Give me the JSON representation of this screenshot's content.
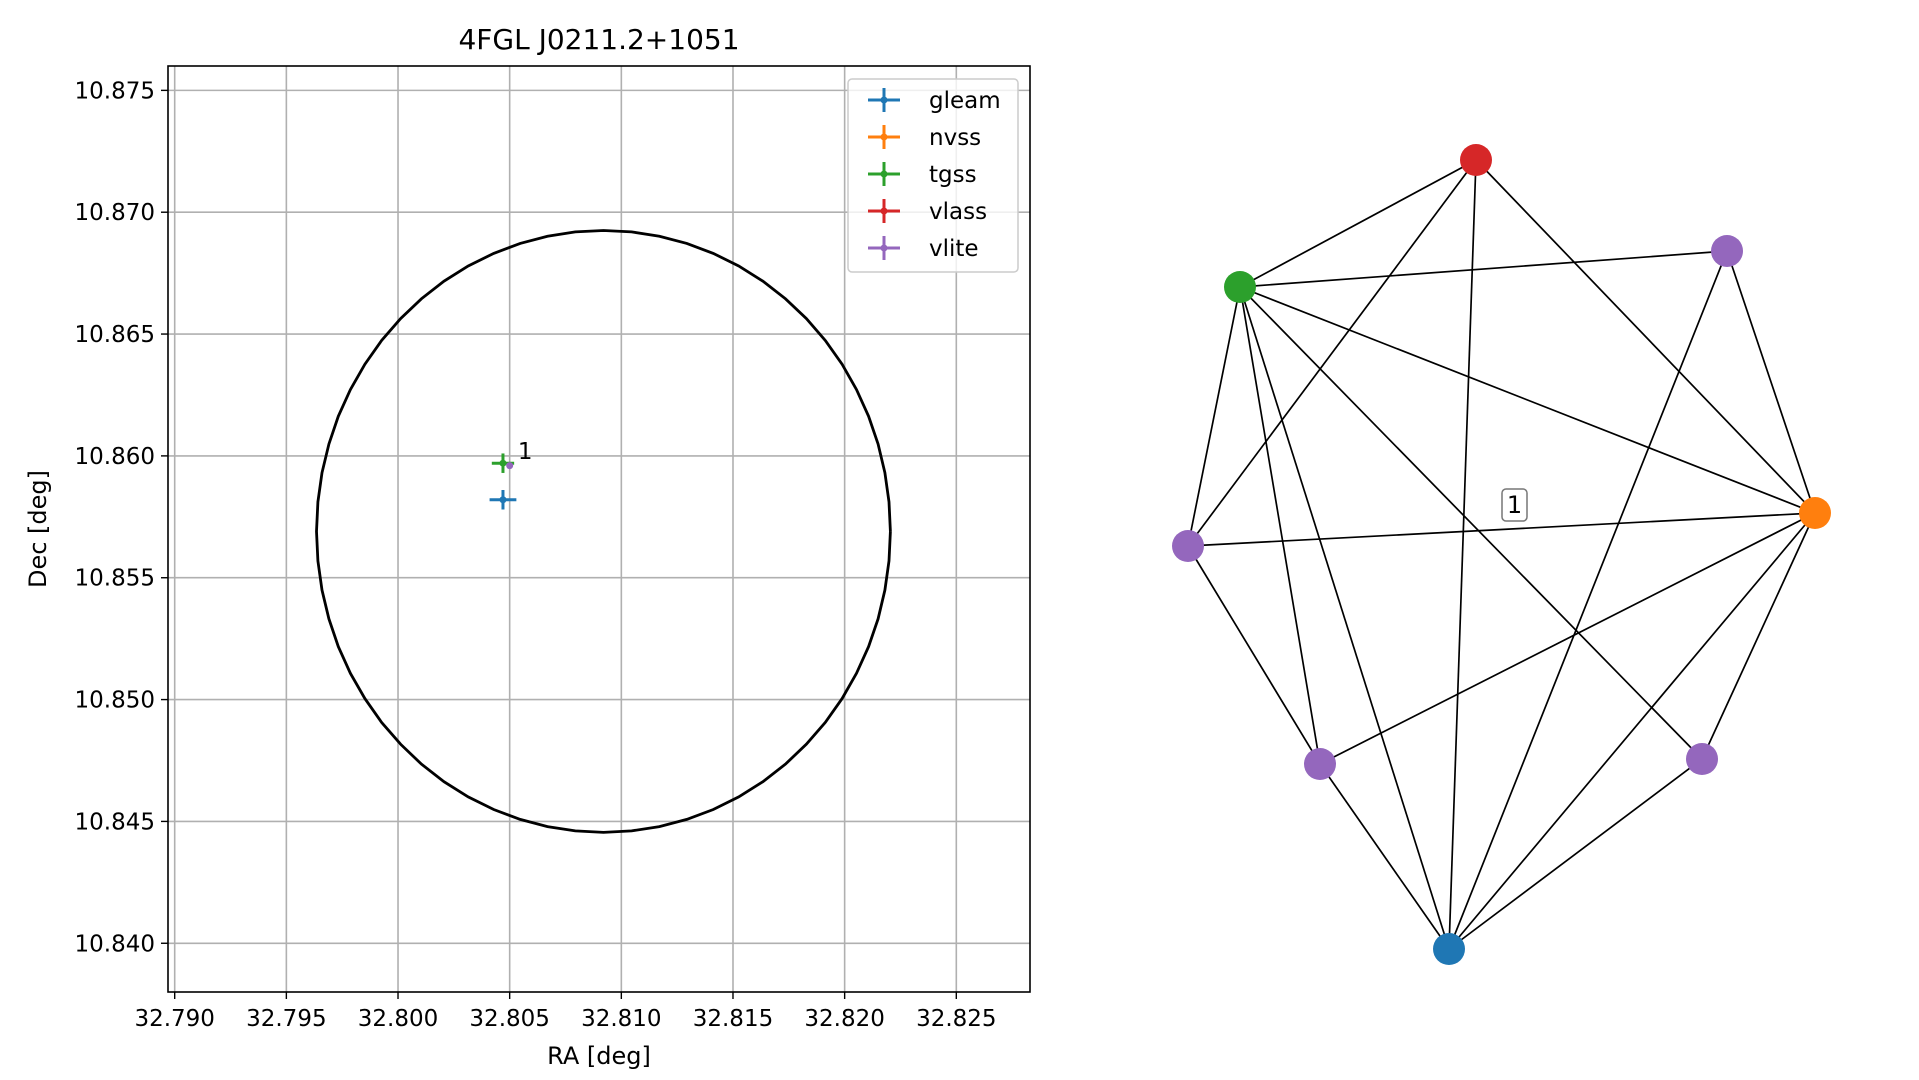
{
  "chart_data": [
    {
      "type": "scatter",
      "title": "4FGL J0211.2+1051",
      "xlabel": "RA [deg]",
      "ylabel": "Dec [deg]",
      "xlim": [
        32.7897,
        32.8283
      ],
      "ylim": [
        10.838,
        10.876
      ],
      "xticks": [
        32.79,
        32.795,
        32.8,
        32.805,
        32.81,
        32.815,
        32.82,
        32.825
      ],
      "yticks": [
        10.84,
        10.845,
        10.85,
        10.855,
        10.86,
        10.865,
        10.87,
        10.875
      ],
      "xtick_labels": [
        "32.790",
        "32.795",
        "32.800",
        "32.805",
        "32.810",
        "32.815",
        "32.820",
        "32.825"
      ],
      "ytick_labels": [
        "10.840",
        "10.845",
        "10.850",
        "10.855",
        "10.860",
        "10.865",
        "10.870",
        "10.875"
      ],
      "grid": true,
      "legend_position": "top-right",
      "ellipse": {
        "center": [
          32.8092,
          10.8569
        ],
        "semi_axis_ra": 0.01285,
        "semi_axis_dec": 0.01235,
        "color": "#000000"
      },
      "series": [
        {
          "name": "gleam",
          "color": "#1f77b4",
          "points": [
            {
              "x": 32.8047,
              "y": 10.8582,
              "xerr": 0.0006,
              "yerr": 0.0004
            }
          ]
        },
        {
          "name": "nvss",
          "color": "#ff7f0e",
          "points": []
        },
        {
          "name": "tgss",
          "color": "#2ca02c",
          "points": [
            {
              "x": 32.8047,
              "y": 10.8597,
              "xerr": 0.0005,
              "yerr": 0.0004
            }
          ]
        },
        {
          "name": "vlass",
          "color": "#d62728",
          "points": []
        },
        {
          "name": "vlite",
          "color": "#9467bd",
          "points": [
            {
              "x": 32.805,
              "y": 10.8596,
              "xerr": 0.0001,
              "yerr": 0.0001
            }
          ]
        }
      ],
      "annotations": [
        {
          "text": "1",
          "x": 32.8051,
          "y": 10.8597
        }
      ]
    },
    {
      "type": "network",
      "nodes": [
        {
          "id": "n0",
          "color": "#1f77b4"
        },
        {
          "id": "n1",
          "color": "#ff7f0e"
        },
        {
          "id": "n2",
          "color": "#2ca02c"
        },
        {
          "id": "n3",
          "color": "#d62728"
        },
        {
          "id": "n4",
          "color": "#9467bd"
        },
        {
          "id": "n5",
          "color": "#9467bd"
        },
        {
          "id": "n6",
          "color": "#9467bd"
        },
        {
          "id": "n7",
          "color": "#9467bd"
        }
      ],
      "edges": [
        [
          "n2",
          "n3"
        ],
        [
          "n2",
          "n4"
        ],
        [
          "n2",
          "n1"
        ],
        [
          "n2",
          "n5"
        ],
        [
          "n2",
          "n6"
        ],
        [
          "n2",
          "n0"
        ],
        [
          "n2",
          "n7"
        ],
        [
          "n3",
          "n5"
        ],
        [
          "n3",
          "n1"
        ],
        [
          "n3",
          "n0"
        ],
        [
          "n4",
          "n1"
        ],
        [
          "n4",
          "n0"
        ],
        [
          "n5",
          "n1"
        ],
        [
          "n5",
          "n6"
        ],
        [
          "n1",
          "n6"
        ],
        [
          "n1",
          "n0"
        ],
        [
          "n1",
          "n7"
        ],
        [
          "n6",
          "n0"
        ],
        [
          "n7",
          "n0"
        ]
      ],
      "labels": [
        {
          "text": "1"
        }
      ]
    }
  ]
}
